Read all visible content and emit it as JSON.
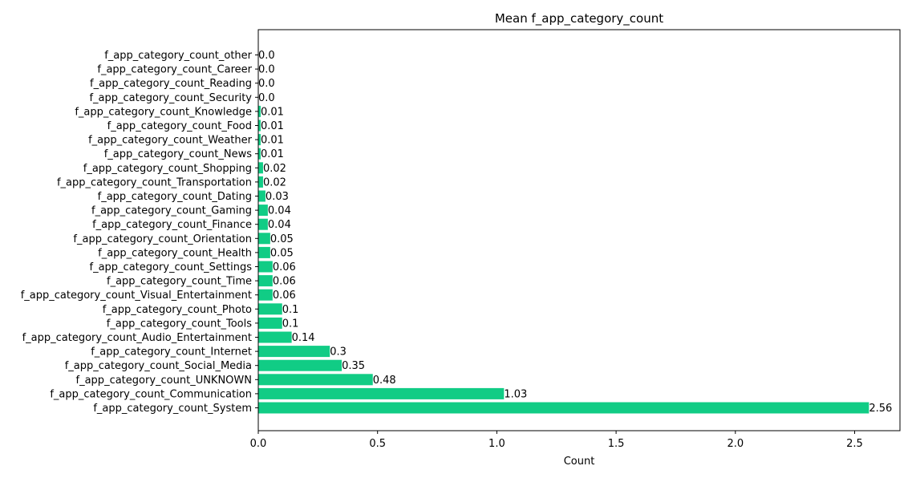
{
  "chart_data": {
    "type": "bar",
    "orientation": "horizontal",
    "title": "Mean f_app_category_count",
    "xlabel": "Count",
    "ylabel": "",
    "xlim": [
      0,
      2.69
    ],
    "xticks": [
      0.0,
      0.5,
      1.0,
      1.5,
      2.0,
      2.5
    ],
    "xtick_labels": [
      "0.0",
      "0.5",
      "1.0",
      "1.5",
      "2.0",
      "2.5"
    ],
    "grid": false,
    "bar_color": "#11CC85",
    "categories": [
      "f_app_category_count_System",
      "f_app_category_count_Communication",
      "f_app_category_count_UNKNOWN",
      "f_app_category_count_Social_Media",
      "f_app_category_count_Internet",
      "f_app_category_count_Audio_Entertainment",
      "f_app_category_count_Tools",
      "f_app_category_count_Photo",
      "f_app_category_count_Visual_Entertainment",
      "f_app_category_count_Time",
      "f_app_category_count_Settings",
      "f_app_category_count_Health",
      "f_app_category_count_Orientation",
      "f_app_category_count_Finance",
      "f_app_category_count_Gaming",
      "f_app_category_count_Dating",
      "f_app_category_count_Transportation",
      "f_app_category_count_Shopping",
      "f_app_category_count_News",
      "f_app_category_count_Weather",
      "f_app_category_count_Food",
      "f_app_category_count_Knowledge",
      "f_app_category_count_Security",
      "f_app_category_count_Reading",
      "f_app_category_count_Career",
      "f_app_category_count_other"
    ],
    "values": [
      2.56,
      1.03,
      0.48,
      0.35,
      0.3,
      0.14,
      0.1,
      0.1,
      0.06,
      0.06,
      0.06,
      0.05,
      0.05,
      0.04,
      0.04,
      0.03,
      0.02,
      0.02,
      0.01,
      0.01,
      0.01,
      0.01,
      0.0,
      0.0,
      0.0,
      0.0
    ],
    "value_labels": [
      "2.56",
      "1.03",
      "0.48",
      "0.35",
      "0.3",
      "0.14",
      "0.1",
      "0.1",
      "0.06",
      "0.06",
      "0.06",
      "0.05",
      "0.05",
      "0.04",
      "0.04",
      "0.03",
      "0.02",
      "0.02",
      "0.01",
      "0.01",
      "0.01",
      "0.01",
      "0.0",
      "0.0",
      "0.0",
      "0.0"
    ]
  }
}
